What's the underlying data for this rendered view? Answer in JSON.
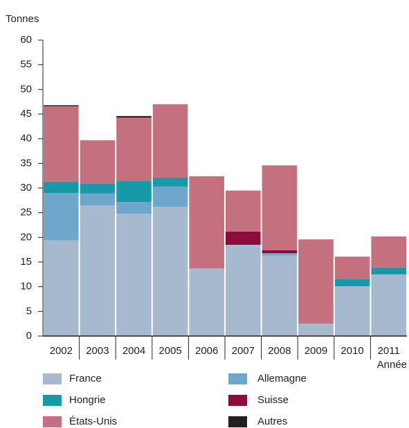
{
  "chart_data": {
    "type": "stacked_bar",
    "y_label": "Tonnes",
    "x_label": "Année",
    "categories": [
      "2002",
      "2003",
      "2004",
      "2005",
      "2006",
      "2007",
      "2008",
      "2009",
      "2010",
      "2011"
    ],
    "series": [
      {
        "name": "France",
        "color": "#a7b9cf",
        "values": [
          19.4,
          26.5,
          24.8,
          26.2,
          13.7,
          18.5,
          16.3,
          2.5,
          10.1,
          12.5
        ]
      },
      {
        "name": "Allemagne",
        "color": "#6fa6cc",
        "values": [
          9.6,
          2.4,
          2.4,
          4.1,
          0,
          0,
          0.5,
          0,
          0,
          0
        ]
      },
      {
        "name": "Hongrie",
        "color": "#1799aa",
        "values": [
          2.3,
          2.0,
          4.2,
          1.8,
          0,
          0,
          0,
          0,
          1.4,
          1.4
        ]
      },
      {
        "name": "Suisse",
        "color": "#8b0c3a",
        "values": [
          0,
          0,
          0,
          0,
          0,
          2.7,
          0.6,
          0,
          0,
          0
        ]
      },
      {
        "name": "États-Unis",
        "color": "#c4707f",
        "values": [
          15.3,
          8.8,
          12.9,
          14.9,
          18.7,
          8.3,
          17.2,
          17.1,
          4.6,
          6.3
        ]
      },
      {
        "name": "Autres",
        "color": "#231f20",
        "values": [
          0.2,
          0,
          0.3,
          0,
          0,
          0,
          0,
          0,
          0,
          0
        ]
      }
    ],
    "ylim": [
      0,
      60
    ],
    "yticks": [
      0,
      5,
      10,
      15,
      20,
      25,
      30,
      35,
      40,
      45,
      50,
      55,
      60
    ]
  }
}
